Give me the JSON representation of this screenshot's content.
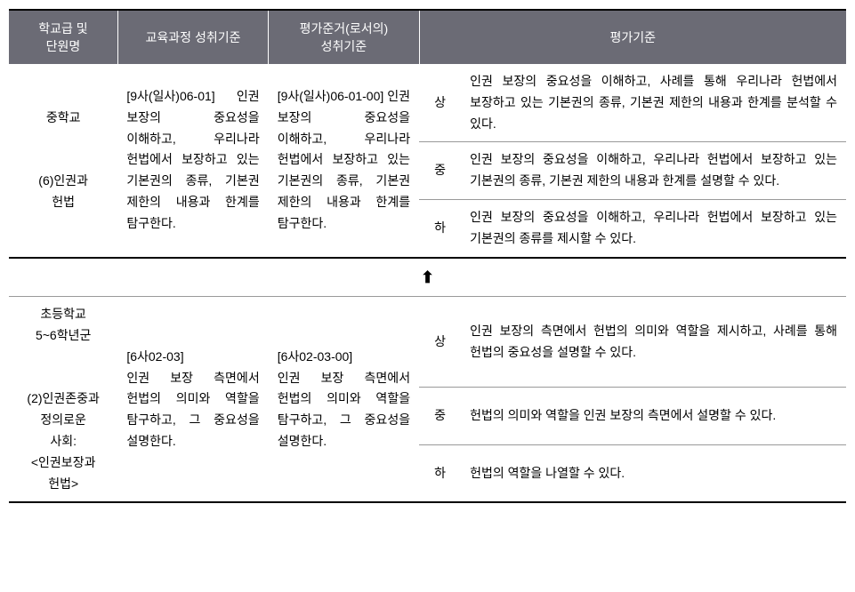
{
  "headers": {
    "school": "학교급 및\n단원명",
    "curriculum": "교육과정 성취기준",
    "assessment": "평가준거(로서의)\n성취기준",
    "evaluation": "평가기준"
  },
  "section1": {
    "school": "중학교\n\n(6)인권과\n헌법",
    "curriculum": "[9사(일사)06-01] 인권 보장의 중요성을 이해하고, 우리나라 헌법에서 보장하고 있는 기본권의 종류, 기본권 제한의 내용과 한계를 탐구한다.",
    "assessment": "[9사(일사)06-01-00] 인권 보장의 중요성을 이해하고, 우리나라 헌법에서 보장하고 있는 기본권의 종류, 기본권 제한의 내용과 한계를 탐구한다.",
    "levels": {
      "high": {
        "label": "상",
        "text": "인권 보장의 중요성을 이해하고, 사례를 통해 우리나라 헌법에서 보장하고 있는 기본권의 종류, 기본권 제한의 내용과 한계를 분석할 수 있다."
      },
      "mid": {
        "label": "중",
        "text": "인권 보장의 중요성을 이해하고, 우리나라 헌법에서 보장하고 있는 기본권의 종류, 기본권 제한의 내용과 한계를 설명할 수 있다."
      },
      "low": {
        "label": "하",
        "text": "인권 보장의 중요성을 이해하고, 우리나라 헌법에서 보장하고 있는 기본권의 종류를 제시할 수 있다."
      }
    }
  },
  "arrow": "⬆",
  "section2": {
    "school": "초등학교\n5~6학년군\n\n(2)인권존중과\n정의로운\n사회:\n<인권보장과\n헌법>",
    "curriculum": "[6사02-03]\n인권 보장 측면에서 헌법의 의미와 역할을 탐구하고, 그 중요성을 설명한다.",
    "assessment": "[6사02-03-00]\n인권 보장 측면에서 헌법의 의미와 역할을 탐구하고, 그 중요성을 설명한다.",
    "levels": {
      "high": {
        "label": "상",
        "text": "인권 보장의 측면에서 헌법의 의미와 역할을 제시하고, 사례를 통해 헌법의 중요성을 설명할 수 있다."
      },
      "mid": {
        "label": "중",
        "text": "헌법의 의미와 역할을 인권 보장의 측면에서 설명할 수 있다."
      },
      "low": {
        "label": "하",
        "text": "헌법의 역할을 나열할 수 있다."
      }
    }
  },
  "colors": {
    "header_bg": "#6b6b75",
    "header_text": "#ffffff",
    "border": "#999999",
    "thick_border": "#000000"
  }
}
